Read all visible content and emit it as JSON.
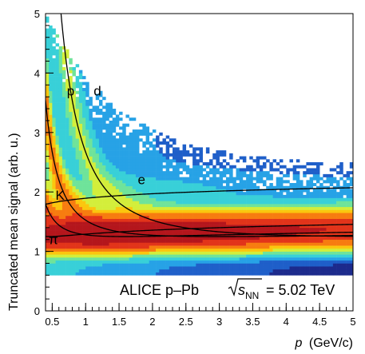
{
  "chart_data": {
    "type": "heatmap",
    "xlabel_main": "p",
    "xlabel_unit": "(GeV/c)",
    "ylabel": "Truncated mean signal (arb. u.)",
    "xlim": [
      0.4,
      5.0
    ],
    "ylim": [
      0,
      5
    ],
    "x_ticks": [
      "0.5",
      "1",
      "1.5",
      "2",
      "2.5",
      "3",
      "3.5",
      "4",
      "4.5",
      "5"
    ],
    "x_tick_values": [
      0.5,
      1,
      1.5,
      2,
      2.5,
      3,
      3.5,
      4,
      4.5,
      5
    ],
    "y_ticks": [
      "0",
      "1",
      "2",
      "3",
      "4",
      "5"
    ],
    "y_tick_values": [
      0,
      1,
      2,
      3,
      4,
      5
    ],
    "annotation": {
      "prefix": "ALICE p–Pb",
      "sqrt_s": "s",
      "subscript": "NN",
      "suffix": "= 5.02  TeV"
    },
    "curves": [
      {
        "label": "π",
        "label_at": [
          0.45,
          1.12
        ],
        "mass": 0.1396,
        "scale": 0.44,
        "offset": 0.62
      },
      {
        "label": "K",
        "label_at": [
          0.55,
          1.87
        ],
        "mass": 0.4937,
        "scale": 0.44,
        "offset": 0.62
      },
      {
        "label": "p",
        "label_at": [
          0.72,
          3.62
        ],
        "mass": 0.9383,
        "scale": 0.44,
        "offset": 0.62
      },
      {
        "label": "d",
        "label_at": [
          1.12,
          3.62
        ],
        "mass": 1.8756,
        "scale": 0.44,
        "offset": 0.62
      },
      {
        "label": "e",
        "label_at": [
          1.78,
          2.13
        ],
        "mass": 0.000511,
        "scale": 0.44,
        "offset": 0.62
      }
    ],
    "colormap": [
      "#1c2a8c",
      "#1f5fc9",
      "#27a2e6",
      "#38d0d8",
      "#6fe39a",
      "#d3ee3b",
      "#fbc60e",
      "#f77c10",
      "#e2341a",
      "#b4161c"
    ]
  }
}
